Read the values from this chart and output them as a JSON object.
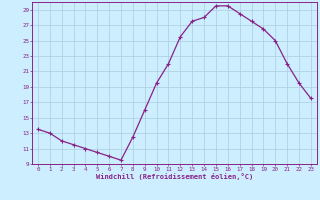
{
  "x": [
    0,
    1,
    2,
    3,
    4,
    5,
    6,
    7,
    8,
    9,
    10,
    11,
    12,
    13,
    14,
    15,
    16,
    17,
    18,
    19,
    20,
    21,
    22,
    23
  ],
  "y": [
    13.5,
    13.0,
    12.0,
    11.5,
    11.0,
    10.5,
    10.0,
    9.5,
    12.5,
    16.0,
    19.5,
    22.0,
    25.5,
    27.5,
    28.0,
    29.5,
    29.5,
    28.5,
    27.5,
    26.5,
    25.0,
    22.0,
    19.5,
    17.5
  ],
  "line_color": "#882288",
  "marker": "+",
  "marker_size": 3,
  "marker_linewidth": 0.8,
  "line_width": 0.9,
  "bg_color": "#cceeff",
  "grid_color": "#aaccdd",
  "xlabel": "Windchill (Refroidissement éolien,°C)",
  "xlabel_color": "#882288",
  "tick_color": "#882288",
  "xlim": [
    -0.5,
    23.5
  ],
  "ylim": [
    9,
    30
  ],
  "xticks": [
    0,
    1,
    2,
    3,
    4,
    5,
    6,
    7,
    8,
    9,
    10,
    11,
    12,
    13,
    14,
    15,
    16,
    17,
    18,
    19,
    20,
    21,
    22,
    23
  ],
  "yticks": [
    9,
    11,
    13,
    15,
    17,
    19,
    21,
    23,
    25,
    27,
    29
  ],
  "spine_color": "#882288",
  "tick_fontsize": 4.2,
  "xlabel_fontsize": 5.0
}
